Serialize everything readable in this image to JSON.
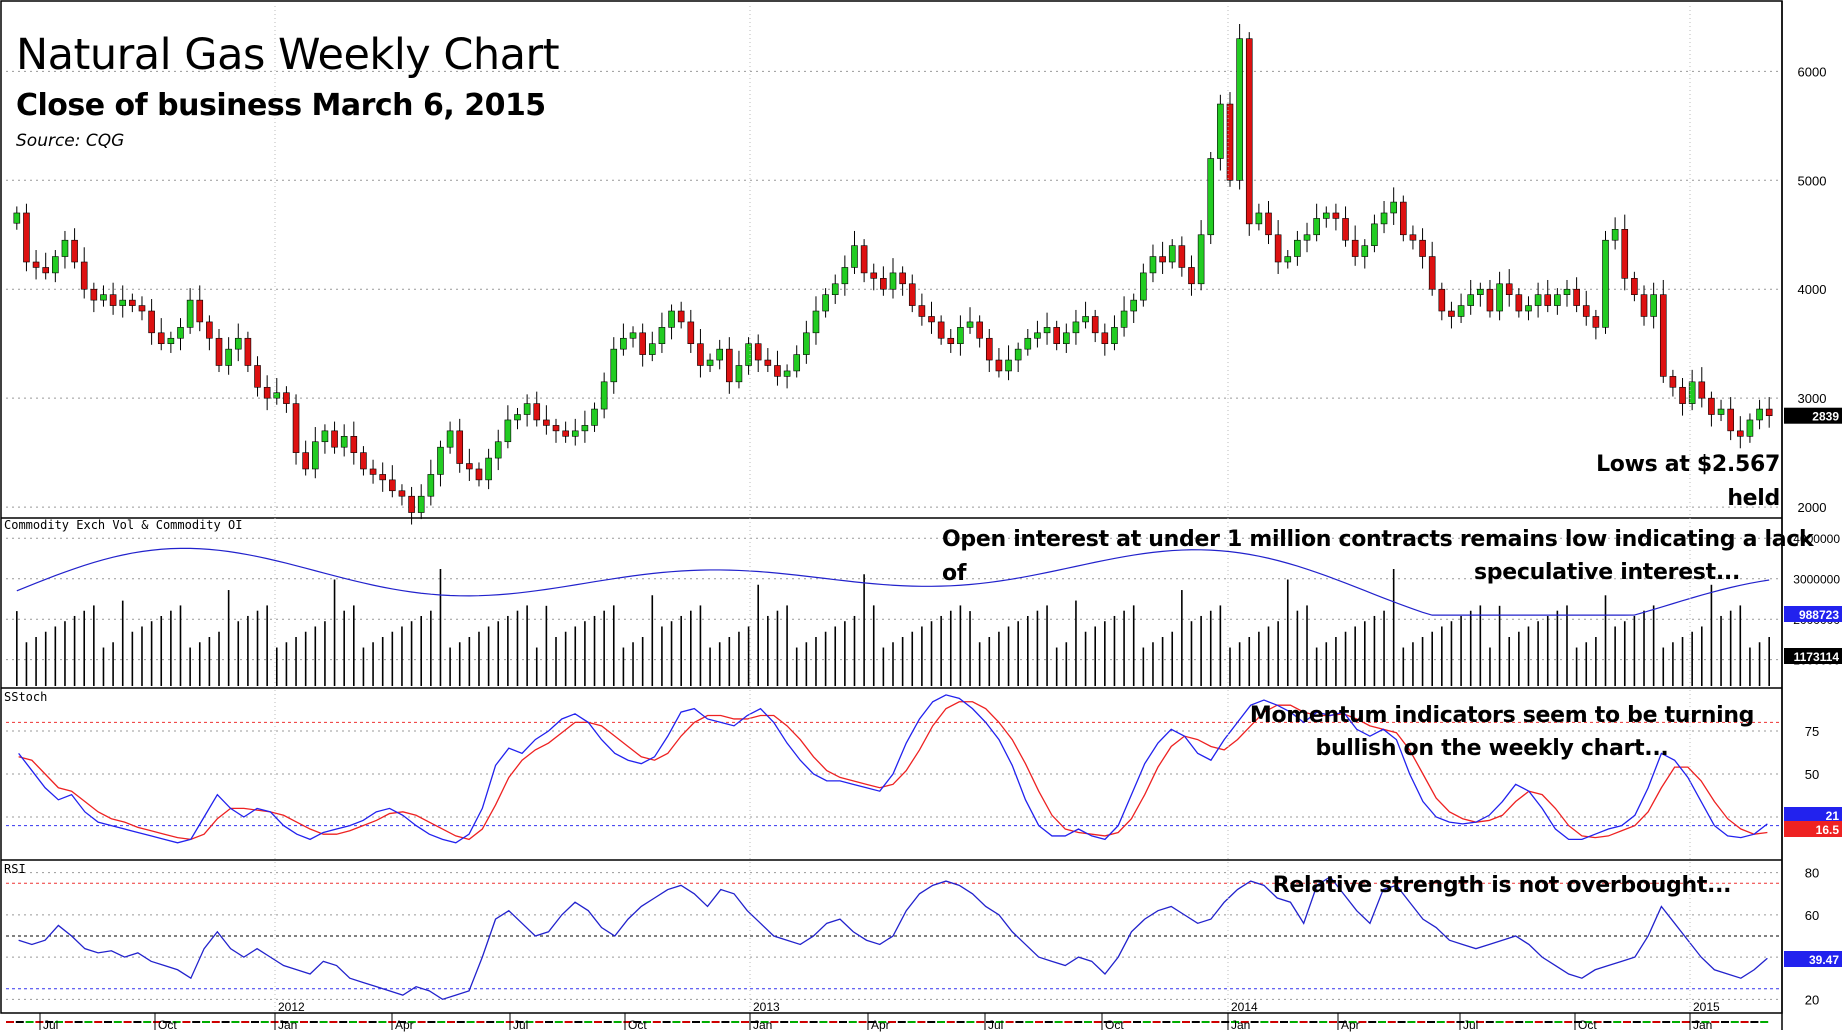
{
  "title": "Natural Gas Weekly Chart",
  "subtitle": "Close of business March 6, 2015",
  "source": "Source: CQG",
  "annotations": {
    "price": "Lows at $2.567 held",
    "oi_line1": "Open interest at under 1 million contracts remains low indicating a lack of",
    "oi_line2": "speculative interest...",
    "mom_line1": "Momentum indicators seem to be turning",
    "mom_line2": "bullish on the weekly chart...",
    "rsi": "Relative strength is not overbought..."
  },
  "panel_labels": {
    "volume": "Commodity Exch Vol & Commodity OI",
    "stoch": "SStoch",
    "rsi": "RSI"
  },
  "colors": {
    "up_candle": "#22cc22",
    "down_candle": "#dd1111",
    "oi_line": "#2222cc",
    "stoch_k": "#2222ee",
    "stoch_d": "#ee2222",
    "rsi_line": "#2222cc",
    "ref_red": "#ee3333",
    "ref_blue": "#3333ee",
    "last_price_box": "#000000",
    "oi_box": "#2222ee",
    "vol_box": "#000000",
    "stoch_k_box": "#2222ee",
    "stoch_d_box": "#ee2222",
    "rsi_box": "#2222ee"
  },
  "chart_data": [
    {
      "type": "candlestick",
      "panel": "price",
      "yticks": [
        2000,
        3000,
        4000,
        5000,
        6000
      ],
      "ylim": [
        1900,
        6600
      ],
      "last_value": "2839",
      "x_axis": {
        "months": [
          "Jul",
          "Oct",
          "Jan",
          "Apr",
          "Jul",
          "Oct",
          "Jan",
          "Apr",
          "Jul",
          "Oct",
          "Jan",
          "Apr",
          "Jul",
          "Oct",
          "Jan"
        ],
        "years": [
          "2012",
          "2013",
          "2014",
          "2015"
        ]
      },
      "weekly_closes": [
        4700,
        4250,
        4200,
        4150,
        4300,
        4450,
        4250,
        4000,
        3900,
        3950,
        3850,
        3900,
        3850,
        3800,
        3600,
        3500,
        3550,
        3650,
        3900,
        3700,
        3550,
        3300,
        3450,
        3550,
        3300,
        3100,
        3000,
        3050,
        2950,
        2500,
        2350,
        2600,
        2700,
        2550,
        2650,
        2500,
        2350,
        2300,
        2250,
        2150,
        2100,
        1950,
        2100,
        2300,
        2550,
        2700,
        2400,
        2350,
        2250,
        2450,
        2600,
        2800,
        2850,
        2950,
        2800,
        2750,
        2700,
        2650,
        2700,
        2750,
        2900,
        3150,
        3450,
        3550,
        3600,
        3400,
        3500,
        3650,
        3800,
        3700,
        3500,
        3300,
        3350,
        3450,
        3150,
        3300,
        3500,
        3350,
        3300,
        3200,
        3250,
        3400,
        3600,
        3800,
        3950,
        4050,
        4200,
        4400,
        4150,
        4100,
        4000,
        4150,
        4050,
        3850,
        3750,
        3700,
        3550,
        3500,
        3650,
        3700,
        3550,
        3350,
        3250,
        3350,
        3450,
        3550,
        3600,
        3650,
        3500,
        3600,
        3700,
        3750,
        3600,
        3500,
        3650,
        3800,
        3900,
        4150,
        4300,
        4250,
        4400,
        4200,
        4050,
        4500,
        5200,
        5700,
        5000,
        6300,
        4600,
        4700,
        4500,
        4250,
        4300,
        4450,
        4500,
        4650,
        4700,
        4650,
        4450,
        4300,
        4400,
        4600,
        4700,
        4800,
        4500,
        4450,
        4300,
        4000,
        3800,
        3750,
        3850,
        3950,
        4000,
        3800,
        4050,
        3950,
        3800,
        3850,
        3950,
        3850,
        3950,
        4000,
        3850,
        3750,
        3650,
        4450,
        4550,
        4100,
        3950,
        3750,
        3950,
        3200,
        3100,
        2950,
        3150,
        3000,
        2850,
        2900,
        2700,
        2650,
        2800,
        2900,
        2839
      ]
    },
    {
      "type": "bar+line",
      "panel": "volume_open_interest",
      "series": [
        {
          "name": "Commodity Exch Vol",
          "last_value": "1173114"
        },
        {
          "name": "Commodity OI",
          "last_value": "988723"
        }
      ],
      "yticks": [
        1000000,
        2000000,
        3000000,
        4000000
      ],
      "ytick_labels": [
        "1000000",
        "2000000",
        "3000000",
        "4000000"
      ],
      "ylim": [
        300000,
        4500000
      ]
    },
    {
      "type": "line",
      "panel": "slow_stochastic",
      "yticks": [
        25,
        50,
        75
      ],
      "ylim": [
        0,
        100
      ],
      "reference_lines": [
        80,
        20
      ],
      "series": [
        {
          "name": "%K",
          "last_value": "21"
        },
        {
          "name": "%D",
          "last_value": "16.5"
        }
      ],
      "k_values": [
        62,
        52,
        42,
        35,
        38,
        28,
        22,
        20,
        18,
        16,
        14,
        12,
        10,
        12,
        25,
        38,
        30,
        25,
        30,
        28,
        20,
        15,
        12,
        16,
        18,
        20,
        23,
        28,
        30,
        26,
        20,
        15,
        12,
        10,
        15,
        30,
        55,
        65,
        62,
        70,
        75,
        82,
        85,
        80,
        70,
        62,
        58,
        56,
        60,
        72,
        86,
        88,
        82,
        80,
        78,
        84,
        88,
        80,
        68,
        58,
        50,
        46,
        46,
        44,
        42,
        40,
        50,
        68,
        82,
        92,
        96,
        94,
        88,
        80,
        70,
        55,
        35,
        20,
        14,
        14,
        18,
        14,
        12,
        20,
        38,
        56,
        68,
        76,
        72,
        62,
        58,
        70,
        80,
        90,
        93,
        90,
        86,
        80,
        86,
        84,
        86,
        76,
        72,
        76,
        70,
        50,
        34,
        25,
        22,
        21,
        22,
        26,
        34,
        44,
        40,
        30,
        18,
        12,
        12,
        15,
        18,
        20,
        26,
        42,
        62,
        58,
        48,
        34,
        20,
        14,
        13,
        15,
        21
      ],
      "d_values": [
        60,
        58,
        50,
        42,
        40,
        34,
        28,
        24,
        22,
        19,
        17,
        15,
        13,
        12,
        15,
        24,
        30,
        30,
        29,
        28,
        26,
        22,
        18,
        15,
        15,
        17,
        20,
        23,
        27,
        28,
        26,
        22,
        18,
        14,
        12,
        18,
        32,
        48,
        58,
        64,
        68,
        74,
        80,
        80,
        78,
        72,
        66,
        60,
        58,
        62,
        72,
        80,
        84,
        84,
        82,
        82,
        84,
        84,
        78,
        70,
        60,
        52,
        48,
        46,
        44,
        42,
        44,
        52,
        64,
        78,
        88,
        92,
        92,
        88,
        80,
        70,
        56,
        40,
        26,
        18,
        16,
        15,
        14,
        16,
        24,
        38,
        54,
        66,
        72,
        70,
        66,
        64,
        70,
        78,
        86,
        90,
        90,
        86,
        84,
        84,
        85,
        82,
        78,
        76,
        74,
        64,
        50,
        36,
        28,
        24,
        22,
        23,
        26,
        34,
        40,
        38,
        30,
        20,
        14,
        13,
        14,
        17,
        20,
        28,
        42,
        54,
        54,
        46,
        34,
        24,
        18,
        15,
        16
      ]
    },
    {
      "type": "line",
      "panel": "rsi",
      "yticks": [
        20,
        40,
        60,
        80
      ],
      "ytick_labels": [
        "20",
        "",
        "60",
        "80"
      ],
      "ylim": [
        14,
        86
      ],
      "reference_lines": [
        75,
        50,
        25
      ],
      "series": [
        {
          "name": "RSI",
          "last_value": "39.47"
        }
      ],
      "values": [
        48,
        46,
        48,
        55,
        50,
        44,
        42,
        43,
        40,
        42,
        38,
        36,
        34,
        30,
        44,
        52,
        44,
        40,
        44,
        40,
        36,
        34,
        32,
        38,
        36,
        30,
        28,
        26,
        24,
        22,
        26,
        24,
        20,
        22,
        24,
        40,
        58,
        62,
        56,
        50,
        52,
        60,
        66,
        62,
        54,
        50,
        58,
        64,
        68,
        72,
        74,
        70,
        64,
        72,
        70,
        62,
        56,
        50,
        48,
        46,
        50,
        56,
        58,
        52,
        48,
        46,
        50,
        62,
        70,
        74,
        76,
        74,
        70,
        64,
        60,
        52,
        46,
        40,
        38,
        36,
        40,
        38,
        32,
        40,
        52,
        58,
        62,
        64,
        60,
        56,
        58,
        66,
        72,
        76,
        74,
        68,
        66,
        56,
        74,
        78,
        70,
        62,
        56,
        72,
        74,
        66,
        58,
        54,
        48,
        46,
        44,
        46,
        48,
        50,
        46,
        40,
        36,
        32,
        30,
        34,
        36,
        38,
        40,
        50,
        64,
        56,
        48,
        40,
        34,
        32,
        30,
        34,
        39.47
      ]
    }
  ]
}
